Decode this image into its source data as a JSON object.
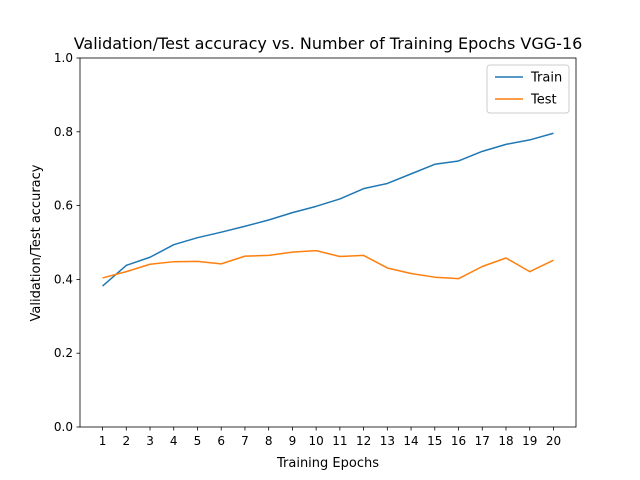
{
  "chart_data": {
    "type": "line",
    "title": "Validation/Test accuracy vs. Number of Training Epochs VGG-16",
    "xlabel": "Training Epochs",
    "ylabel": "Validation/Test accuracy",
    "x": [
      1,
      2,
      3,
      4,
      5,
      6,
      7,
      8,
      9,
      10,
      11,
      12,
      13,
      14,
      15,
      16,
      17,
      18,
      19,
      20
    ],
    "ylim": [
      0,
      1.0
    ],
    "yticks": [
      "0.0",
      "0.2",
      "0.4",
      "0.6",
      "0.8",
      "1.0"
    ],
    "legend_position": "top-right",
    "grid": false,
    "series": [
      {
        "name": "Train",
        "color": "#1f77b4",
        "values": [
          0.382,
          0.438,
          0.46,
          0.494,
          0.513,
          0.528,
          0.544,
          0.561,
          0.581,
          0.598,
          0.618,
          0.646,
          0.66,
          0.686,
          0.712,
          0.721,
          0.747,
          0.766,
          0.778,
          0.796
        ]
      },
      {
        "name": "Test",
        "color": "#ff7f0e",
        "values": [
          0.404,
          0.421,
          0.441,
          0.448,
          0.449,
          0.442,
          0.463,
          0.465,
          0.474,
          0.478,
          0.462,
          0.465,
          0.431,
          0.416,
          0.406,
          0.402,
          0.435,
          0.458,
          0.421,
          0.452
        ]
      }
    ]
  }
}
